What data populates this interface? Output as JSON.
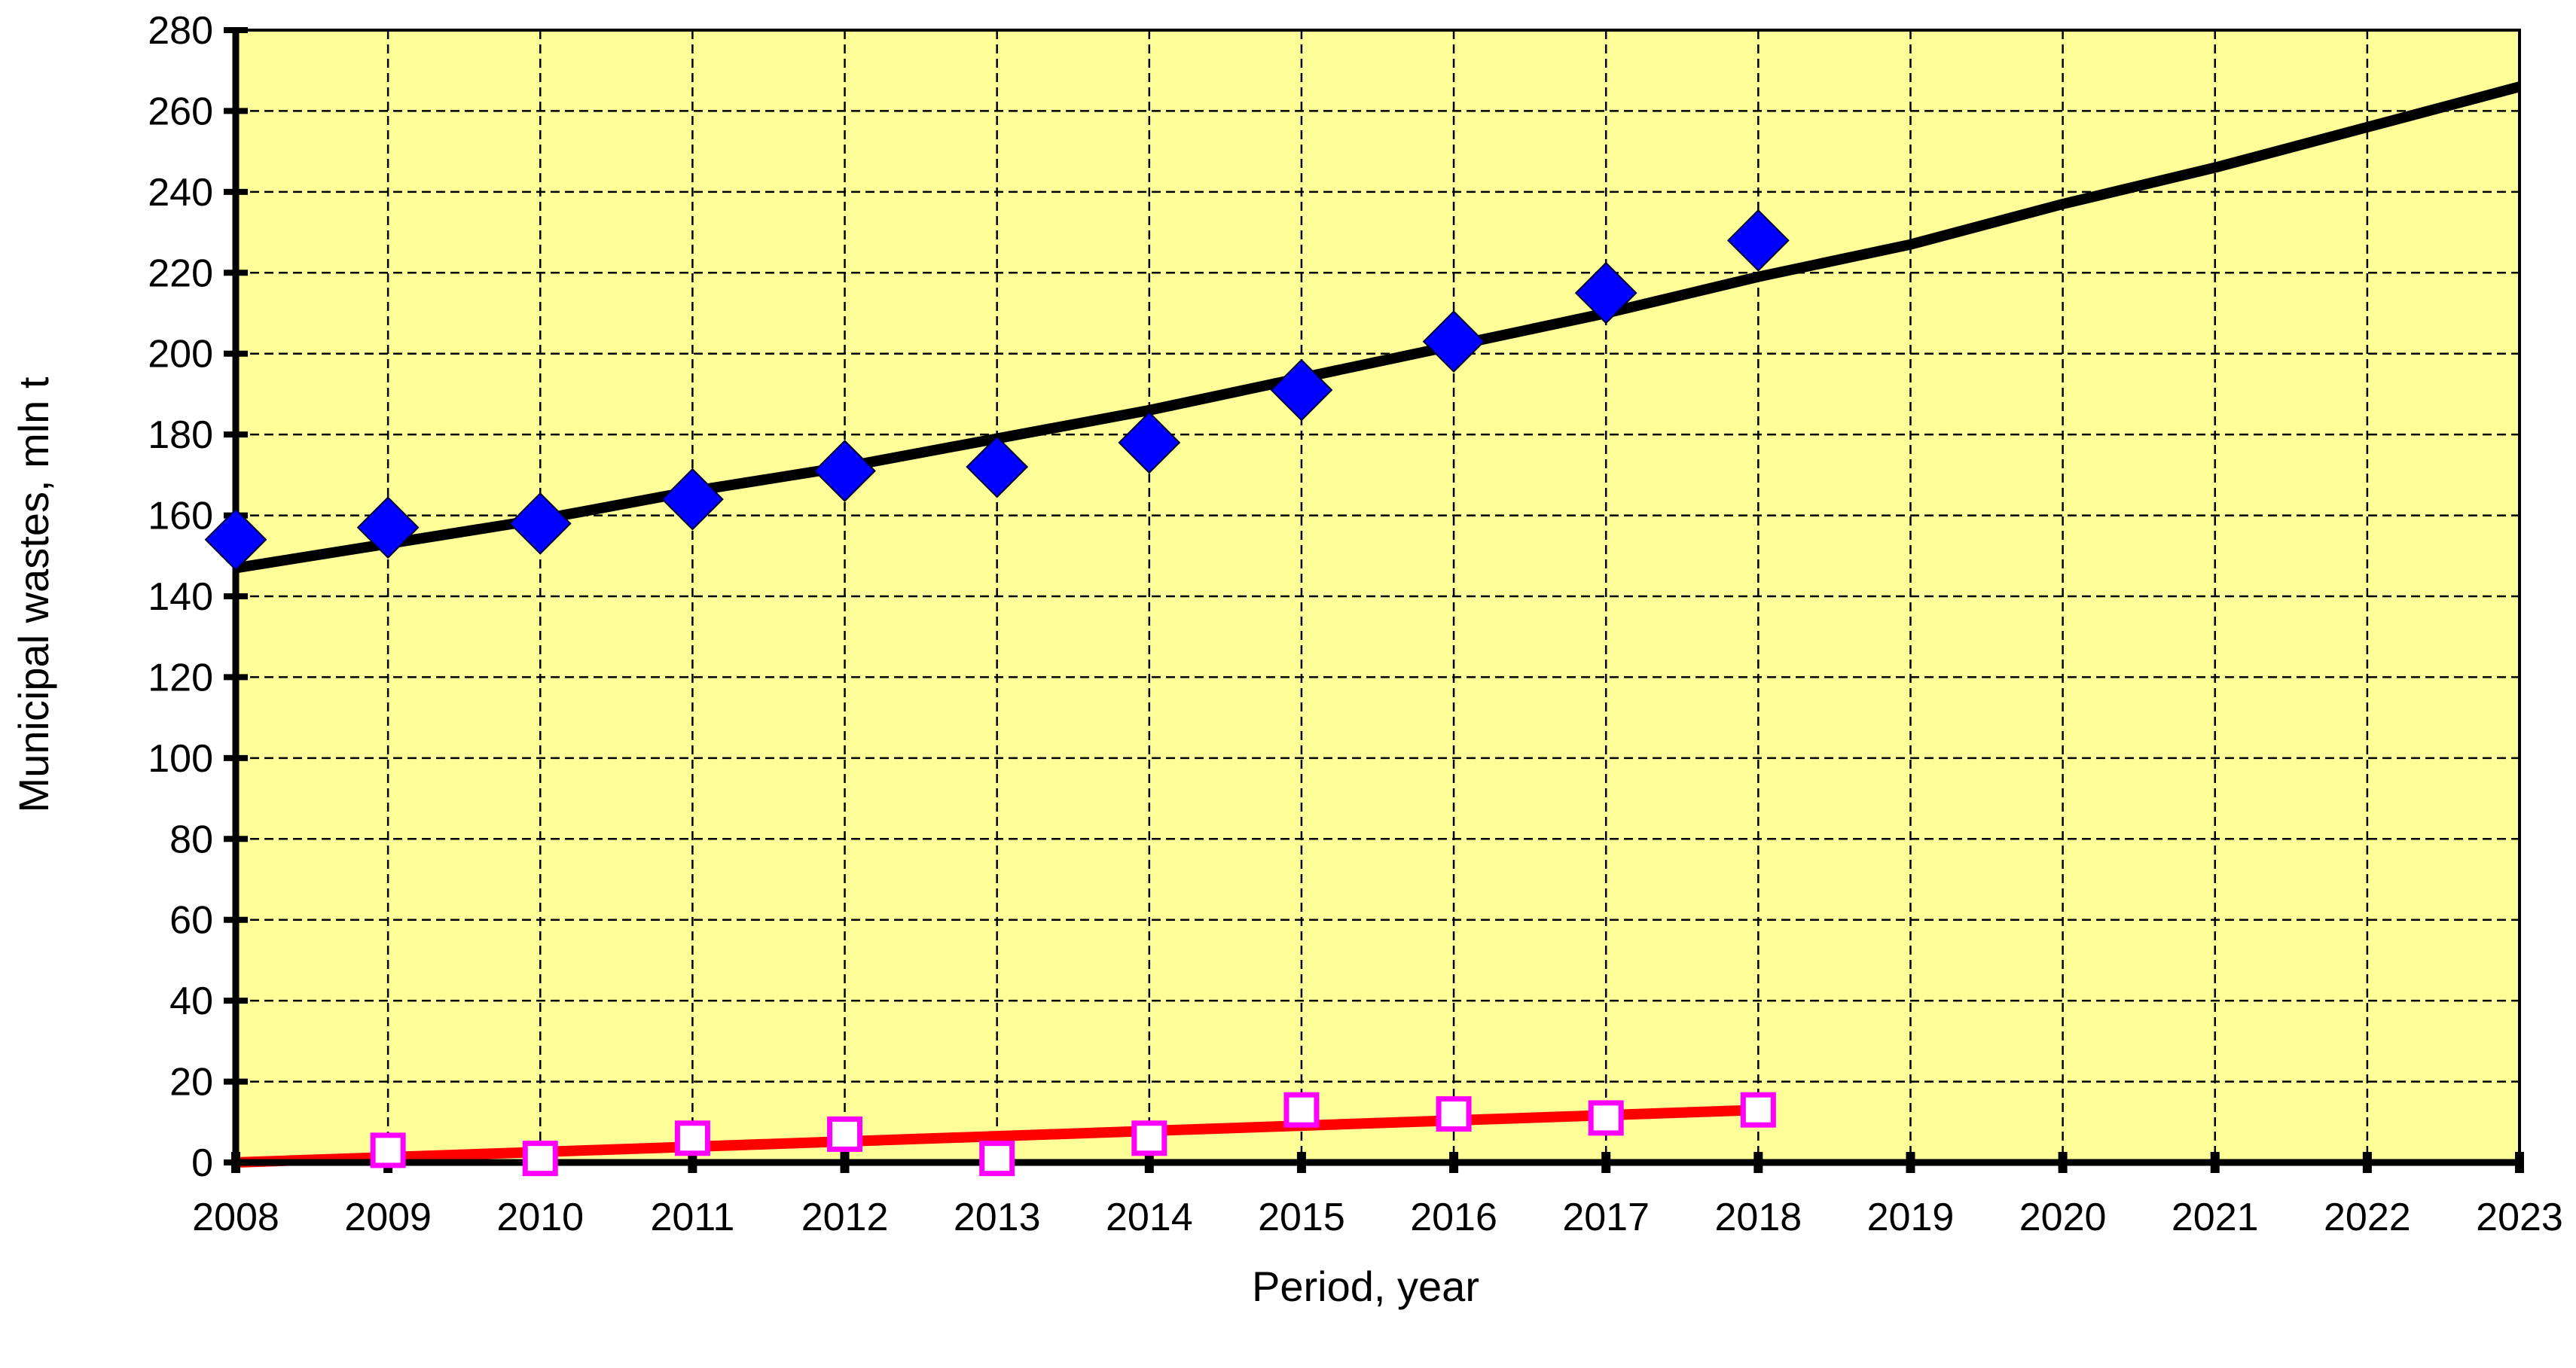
{
  "chart_data": {
    "type": "scatter",
    "title": "",
    "xlabel": "Period, year",
    "ylabel": "Municipal wastes, mln t",
    "xlim": [
      2008,
      2023
    ],
    "ylim": [
      0,
      280
    ],
    "x_ticks": [
      2008,
      2009,
      2010,
      2011,
      2012,
      2013,
      2014,
      2015,
      2016,
      2017,
      2018,
      2019,
      2020,
      2021,
      2022,
      2023
    ],
    "y_ticks": [
      0,
      20,
      40,
      60,
      80,
      100,
      120,
      140,
      160,
      180,
      200,
      220,
      240,
      260,
      280
    ],
    "grid": true,
    "legend": "none",
    "background_color": "#ffff99",
    "series": [
      {
        "marker": "diamond-filled",
        "color": "#0000ff",
        "x": [
          2008,
          2009,
          2010,
          2011,
          2012,
          2013,
          2014,
          2015,
          2016,
          2017,
          2018
        ],
        "values": [
          154,
          157,
          158,
          164,
          171,
          172,
          178,
          191,
          203,
          215,
          228
        ]
      },
      {
        "marker": "square-open",
        "color": "#ff00ff",
        "x": [
          2009,
          2010,
          2011,
          2012,
          2013,
          2014,
          2015,
          2016,
          2017,
          2018
        ],
        "values": [
          3,
          1,
          6,
          7,
          1,
          6,
          13,
          12,
          11,
          13
        ]
      }
    ],
    "trendlines": [
      {
        "color": "#000000",
        "x": [
          2008,
          2009,
          2010,
          2011,
          2012,
          2013,
          2014,
          2015,
          2016,
          2017,
          2018,
          2019,
          2020,
          2021,
          2022,
          2023
        ],
        "values": [
          147,
          153,
          159,
          166,
          172,
          179,
          186,
          194,
          202,
          210,
          219,
          227,
          237,
          246,
          256,
          266
        ]
      },
      {
        "color": "#ff0000",
        "x": [
          2008,
          2018
        ],
        "values": [
          0,
          13
        ]
      }
    ]
  }
}
